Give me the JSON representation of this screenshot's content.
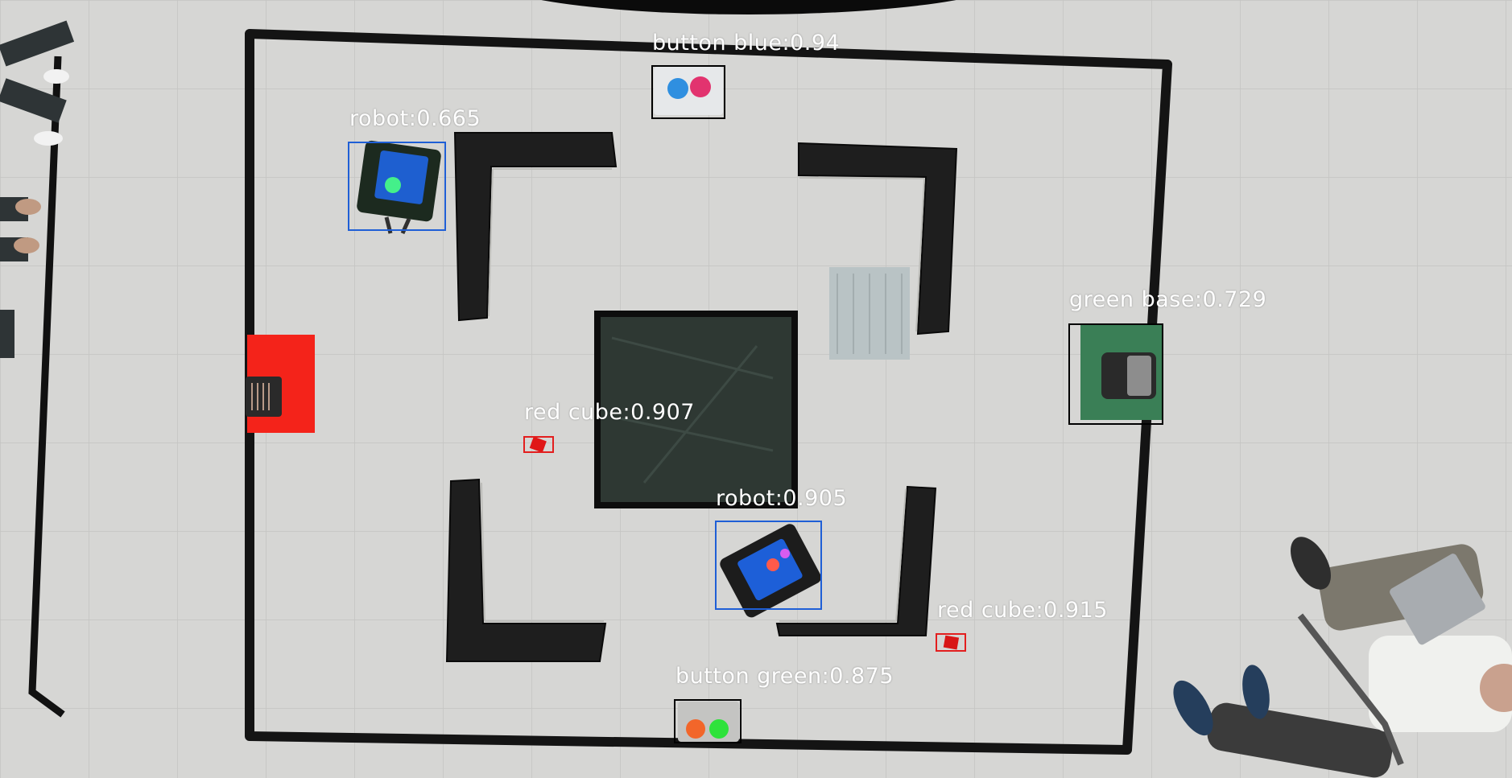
{
  "detections": [
    {
      "id": "button-blue",
      "label": "button blue:0.94",
      "color": "#000000"
    },
    {
      "id": "robot-1",
      "label": "robot:0.665",
      "color": "#1f5fd6"
    },
    {
      "id": "green-base",
      "label": "green base:0.729",
      "color": "#000000"
    },
    {
      "id": "red-cube-1",
      "label": "red cube:0.907",
      "color": "#e31e1e"
    },
    {
      "id": "robot-2",
      "label": "robot:0.905",
      "color": "#1f5fd6"
    },
    {
      "id": "red-cube-2",
      "label": "red cube:0.915",
      "color": "#e31e1e"
    },
    {
      "id": "button-green",
      "label": "button green:0.875",
      "color": "#000000"
    }
  ]
}
